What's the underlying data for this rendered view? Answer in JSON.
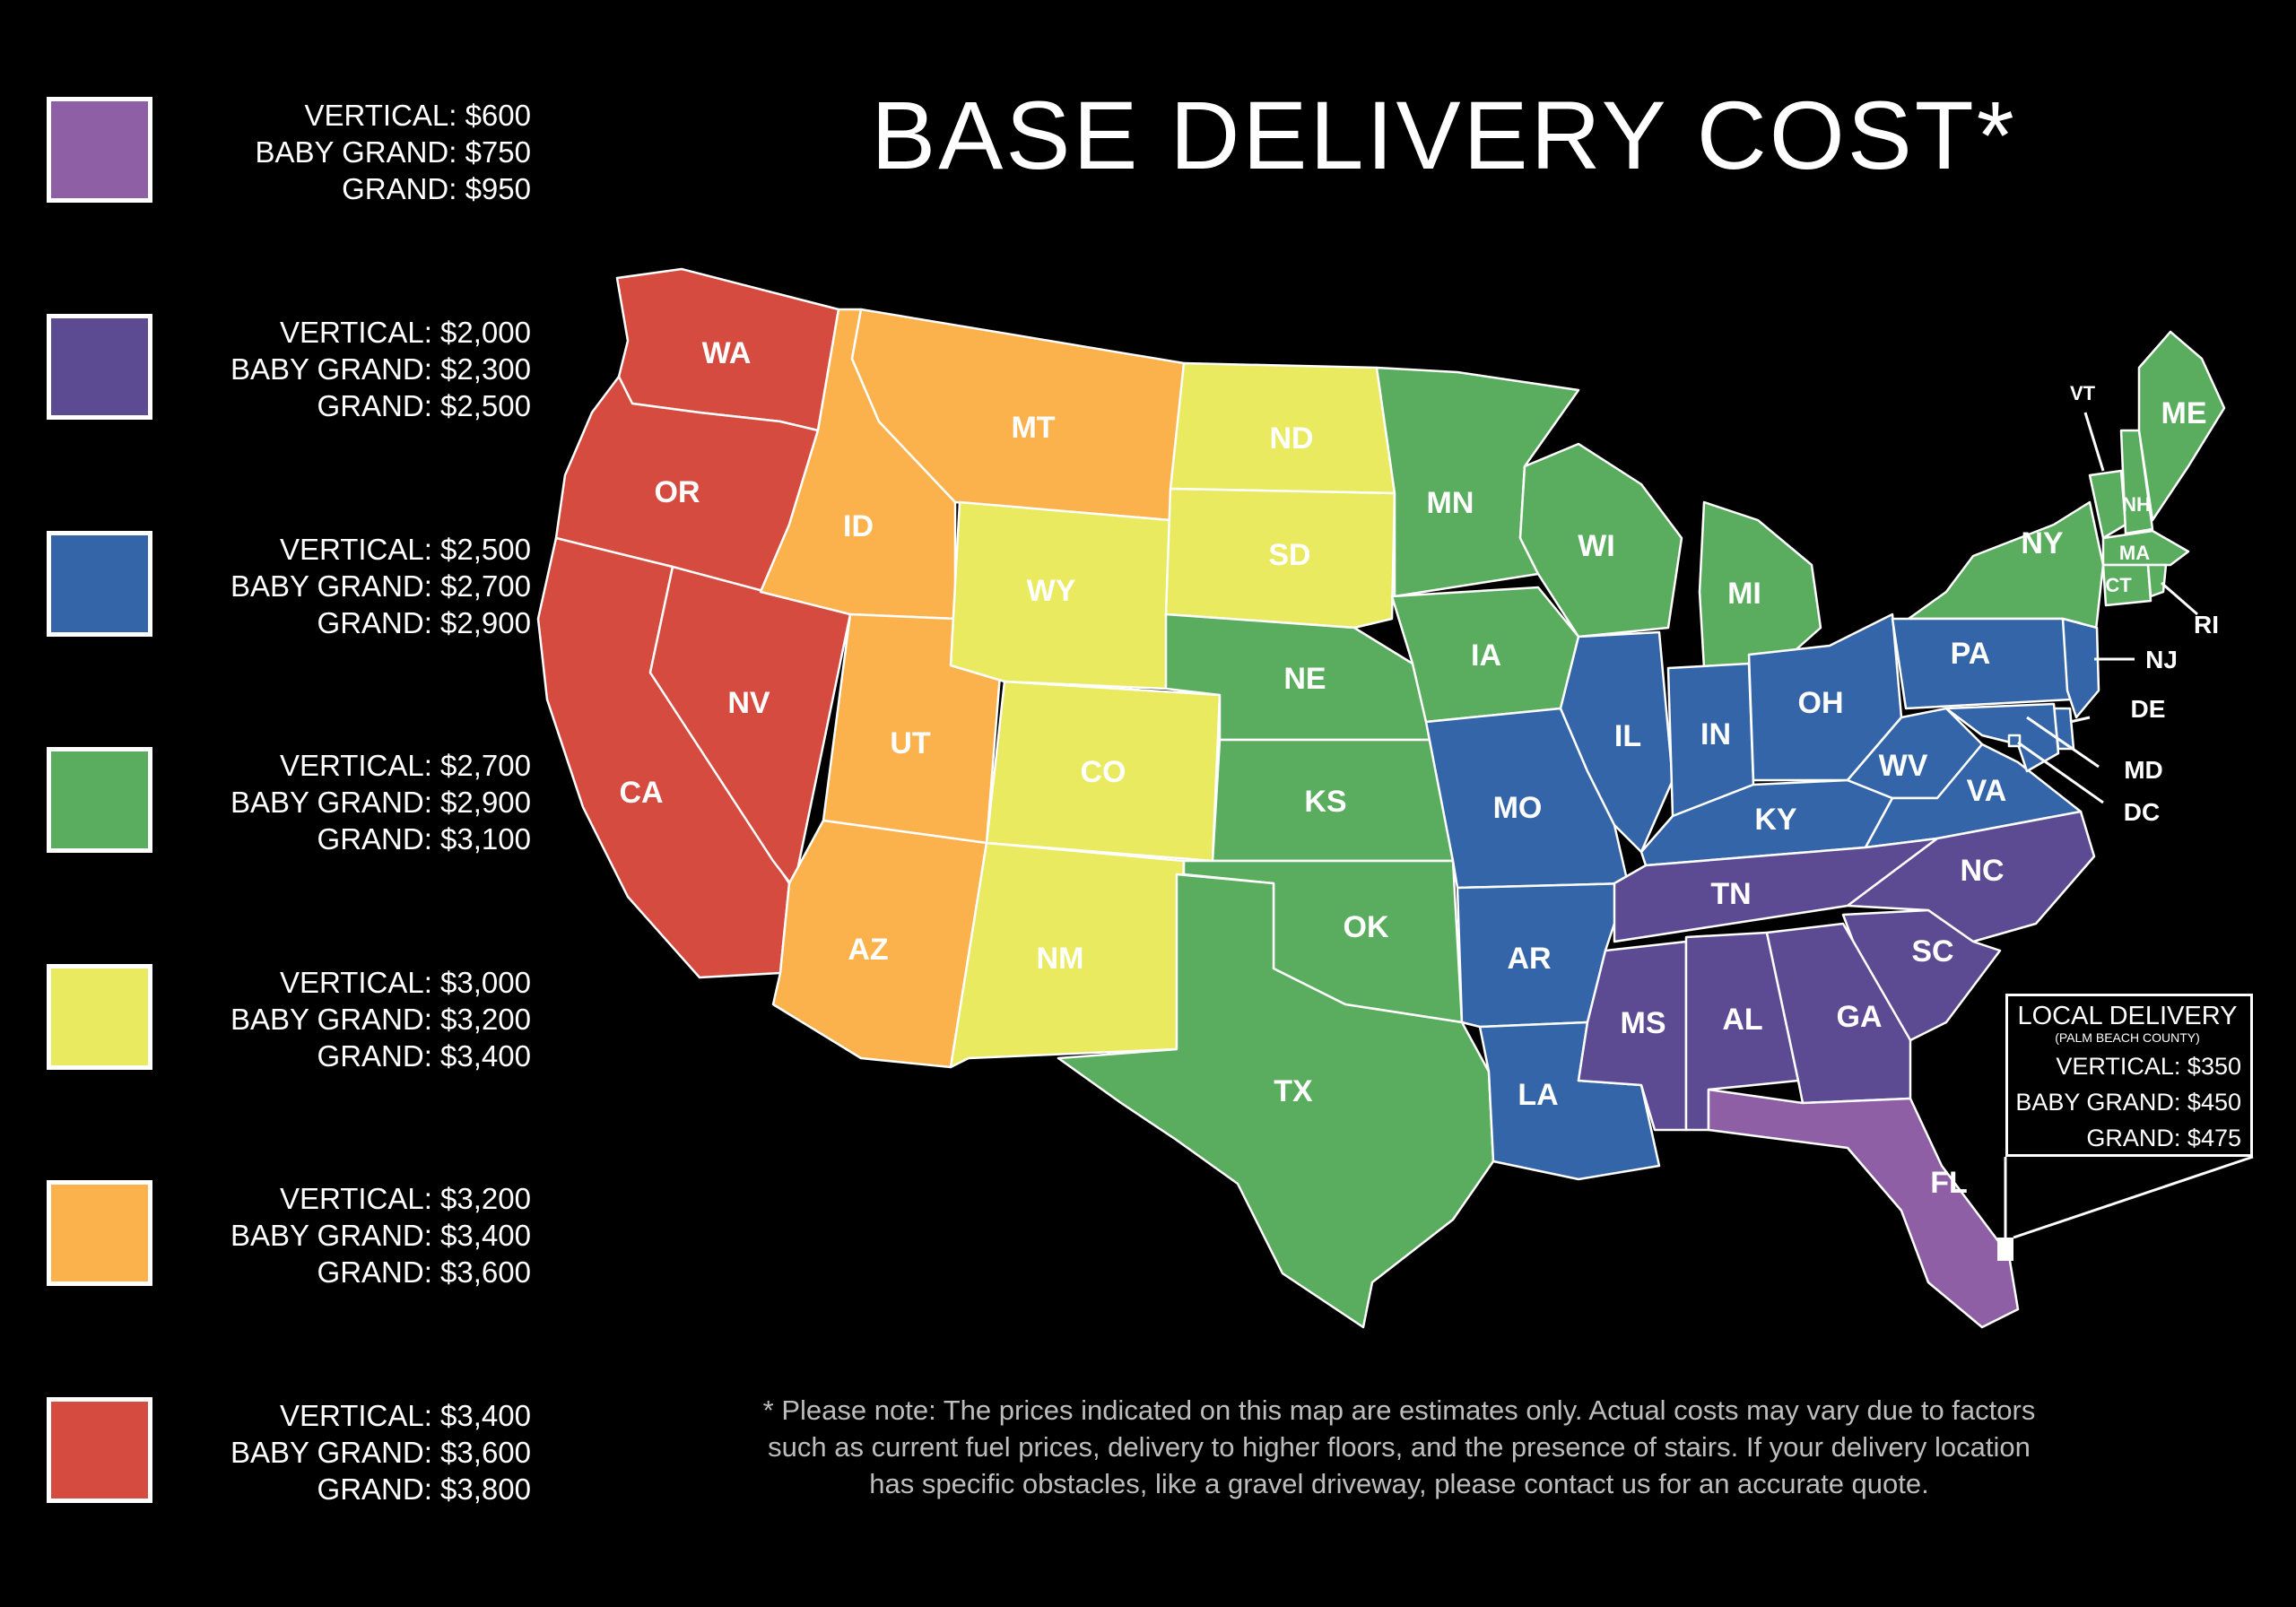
{
  "title": "BASE DELIVERY COST*",
  "legend": [
    {
      "color": "#8e5fa5",
      "lines": [
        "VERTICAL: $600",
        "BABY GRAND: $750",
        "GRAND: $950"
      ]
    },
    {
      "color": "#5c4a93",
      "lines": [
        "VERTICAL: $2,000",
        "BABY GRAND: $2,300",
        "GRAND: $2,500"
      ]
    },
    {
      "color": "#3465a8",
      "lines": [
        "VERTICAL: $2,500",
        "BABY GRAND: $2,700",
        "GRAND: $2,900"
      ]
    },
    {
      "color": "#5aad5e",
      "lines": [
        "VERTICAL: $2,700",
        "BABY GRAND: $2,900",
        "GRAND: $3,100"
      ]
    },
    {
      "color": "#e9ea5f",
      "lines": [
        "VERTICAL: $3,000",
        "BABY GRAND: $3,200",
        "GRAND: $3,400"
      ]
    },
    {
      "color": "#fbb24c",
      "lines": [
        "VERTICAL: $3,200",
        "BABY GRAND: $3,400",
        "GRAND: $3,600"
      ]
    },
    {
      "color": "#d64b3f",
      "lines": [
        "VERTICAL: $3,400",
        "BABY GRAND: $3,600",
        "GRAND: $3,800"
      ]
    }
  ],
  "states": {
    "red": [
      "WA",
      "OR",
      "CA",
      "NV"
    ],
    "orange": [
      "ID",
      "MT",
      "UT",
      "AZ"
    ],
    "yellow": [
      "WY",
      "ND",
      "SD",
      "CO",
      "NM"
    ],
    "green": [
      "NE",
      "KS",
      "OK",
      "TX",
      "MN",
      "IA",
      "WI",
      "MI",
      "NY",
      "VT",
      "NH",
      "ME",
      "MA",
      "CT",
      "RI"
    ],
    "blue": [
      "MO",
      "AR",
      "LA",
      "IL",
      "IN",
      "OH",
      "KY",
      "PA",
      "WV",
      "VA",
      "NJ",
      "DE",
      "MD",
      "DC"
    ],
    "dark_purple": [
      "TN",
      "NC",
      "SC",
      "MS",
      "AL",
      "GA"
    ],
    "light_purple": [
      "FL"
    ]
  },
  "local_delivery": {
    "title": "LOCAL DELIVERY",
    "subtitle": "(PALM BEACH COUNTY)",
    "lines": [
      "VERTICAL: $350",
      "BABY GRAND: $450",
      "GRAND: $475"
    ]
  },
  "note": [
    "* Please note: The prices indicated on this map are estimates only. Actual costs may vary due to factors",
    "such as current fuel prices, delivery to higher floors, and the presence of stairs. If your delivery location",
    "has specific obstacles, like a gravel driveway, please contact us for an accurate quote."
  ]
}
